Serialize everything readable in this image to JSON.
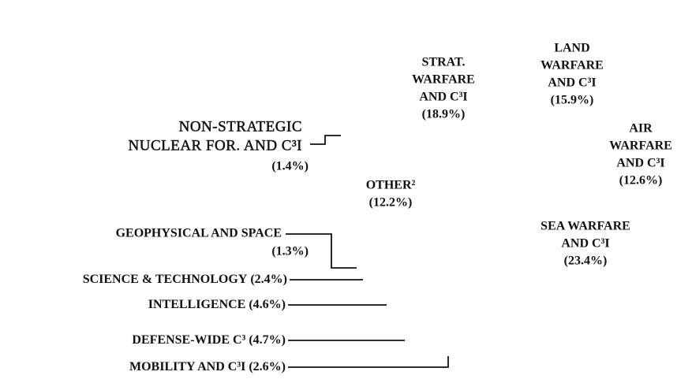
{
  "chart_data": {
    "type": "pie",
    "categories": [
      [
        "LAND",
        "WARFARE",
        "AND C³I"
      ],
      [
        "AIR",
        "WARFARE",
        "AND C³I"
      ],
      [
        "SEA WARFARE",
        "AND C³I"
      ],
      [
        "MOBILITY AND C³I"
      ],
      [
        "DEFENSE-WIDE C³"
      ],
      [
        "INTELLIGENCE"
      ],
      [
        "SCIENCE & TECHNOLOGY"
      ],
      [
        "GEOPHYSICAL AND SPACE"
      ],
      [
        "OTHER²"
      ],
      [
        "NON-STRATEGIC",
        "NUCLEAR FOR. AND C³I"
      ],
      [
        "STRAT.",
        "WARFARE",
        "AND C³I"
      ]
    ],
    "values": [
      15.9,
      12.6,
      23.4,
      2.6,
      4.7,
      4.6,
      2.4,
      1.3,
      12.2,
      1.4,
      18.9
    ],
    "value_labels": [
      "(15.9%)",
      "(12.6%)",
      "(23.4%)",
      "(2.6%)",
      "(4.7%)",
      "(4.6%)",
      "(2.4%)",
      "(1.3%)",
      "(12.2%)",
      "(1.4%)",
      "(18.9%)"
    ],
    "color": "#ffffff"
  }
}
